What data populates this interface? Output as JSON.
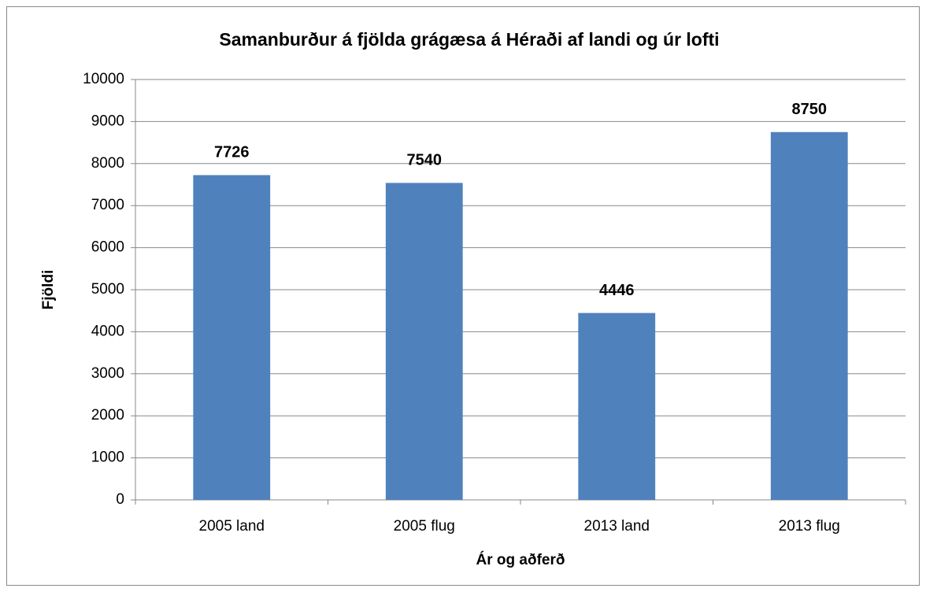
{
  "chart_data": {
    "type": "bar",
    "title": "Samanburður á fjölda grágæsa á Héraði af landi og úr lofti",
    "x_label": "Ár og aðferð",
    "y_label": "Fjöldi",
    "categories": [
      "2005 land",
      "2005 flug",
      "2013 land",
      "2013 flug"
    ],
    "values": [
      7726,
      7540,
      4446,
      8750
    ],
    "color": "#4f81bd",
    "ylim": [
      0,
      10000
    ],
    "yticks": [
      0,
      1000,
      2000,
      3000,
      4000,
      5000,
      6000,
      7000,
      8000,
      9000,
      10000
    ],
    "grid": true
  }
}
